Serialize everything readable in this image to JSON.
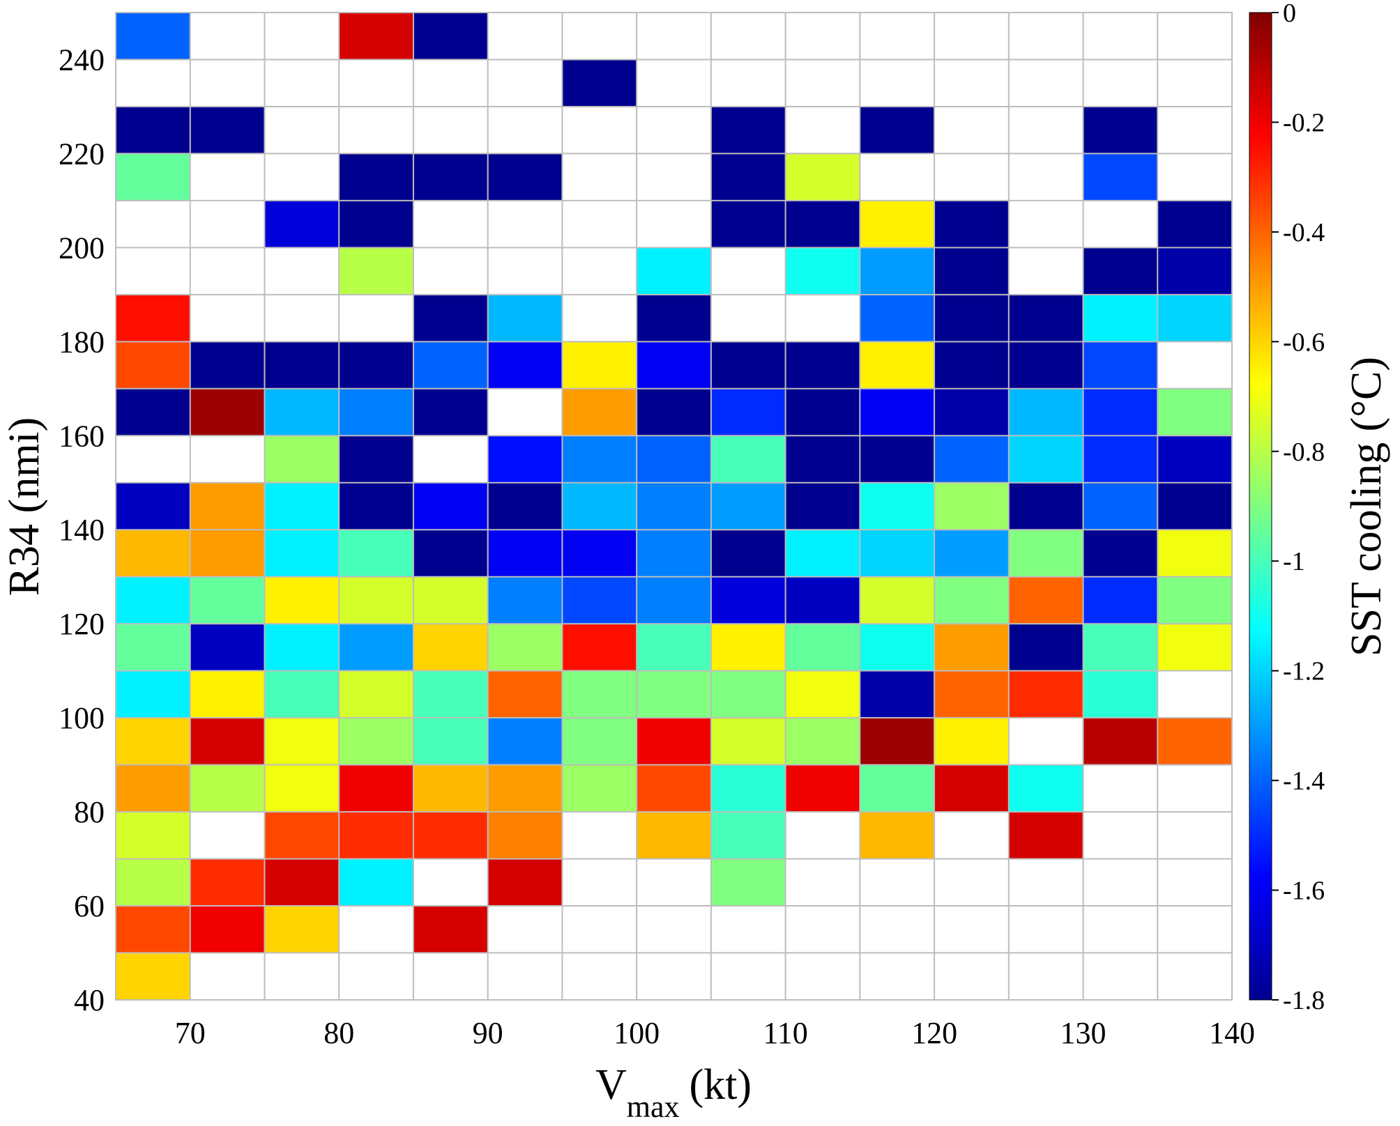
{
  "chart_data": {
    "type": "heatmap",
    "title": "",
    "xlabel": {
      "main": "V",
      "sub": "max",
      "unit": "(kt)"
    },
    "ylabel": "R34 (nmi)",
    "colorbar_label": "SST cooling (°C)",
    "xlim": [
      65,
      140
    ],
    "ylim": [
      40,
      250
    ],
    "clim": [
      -1.8,
      0
    ],
    "colormap": "jet",
    "x_ticks": [
      70,
      80,
      90,
      100,
      110,
      120,
      130,
      140
    ],
    "y_ticks": [
      40,
      60,
      80,
      100,
      120,
      140,
      160,
      180,
      200,
      220,
      240
    ],
    "colorbar_ticks": [
      "0",
      "-0.2",
      "-0.4",
      "-0.6",
      "-0.8",
      "-1",
      "-1.2",
      "-1.4",
      "-1.6",
      "-1.8"
    ],
    "x_bin_width": 5,
    "y_bin_height": 10,
    "x_bins": [
      65,
      70,
      75,
      80,
      85,
      90,
      95,
      100,
      105,
      110,
      115,
      120,
      125,
      130,
      135
    ],
    "y_bins": [
      240,
      230,
      220,
      210,
      200,
      190,
      180,
      170,
      160,
      150,
      140,
      130,
      120,
      110,
      100,
      90,
      80,
      70,
      60,
      50,
      40
    ],
    "grid": true,
    "values": [
      [
        -1.4,
        null,
        null,
        -0.15,
        -1.8,
        null,
        null,
        null,
        null,
        null,
        null,
        null,
        null,
        null,
        null
      ],
      [
        null,
        null,
        null,
        null,
        null,
        null,
        -1.8,
        null,
        null,
        null,
        null,
        null,
        null,
        null,
        null
      ],
      [
        -1.8,
        -1.8,
        null,
        null,
        null,
        null,
        null,
        null,
        -1.8,
        null,
        -1.8,
        null,
        null,
        -1.8,
        null
      ],
      [
        -0.95,
        null,
        null,
        -1.8,
        -1.8,
        -1.8,
        null,
        null,
        -1.8,
        -0.75,
        null,
        null,
        null,
        -1.45,
        null
      ],
      [
        null,
        null,
        -1.65,
        -1.8,
        null,
        null,
        null,
        null,
        -1.8,
        -1.8,
        -0.65,
        -1.8,
        null,
        null,
        -1.8
      ],
      [
        null,
        null,
        null,
        -0.8,
        null,
        null,
        null,
        -1.15,
        null,
        -1.1,
        -1.3,
        -1.8,
        null,
        -1.8,
        -1.75
      ],
      [
        -0.25,
        null,
        null,
        null,
        -1.8,
        -1.25,
        null,
        -1.8,
        null,
        null,
        -1.4,
        -1.8,
        -1.8,
        -1.15,
        -1.2
      ],
      [
        -0.35,
        -1.8,
        -1.8,
        -1.8,
        -1.4,
        -1.6,
        -0.65,
        -1.6,
        -1.8,
        -1.8,
        -0.65,
        -1.8,
        -1.8,
        -1.45,
        null
      ],
      [
        -1.8,
        -0.05,
        -1.25,
        -1.35,
        -1.8,
        null,
        -0.5,
        -1.8,
        -1.5,
        -1.8,
        -1.6,
        -1.75,
        -1.25,
        -1.5,
        -0.9
      ],
      [
        null,
        null,
        -0.85,
        -1.8,
        null,
        -1.55,
        -1.35,
        -1.4,
        -1.0,
        -1.8,
        -1.8,
        -1.4,
        -1.2,
        -1.5,
        -1.7
      ],
      [
        -1.7,
        -0.5,
        -1.15,
        -1.8,
        -1.6,
        -1.8,
        -1.25,
        -1.35,
        -1.3,
        -1.8,
        -1.1,
        -0.85,
        -1.8,
        -1.4,
        -1.8
      ],
      [
        -0.55,
        -0.5,
        -1.15,
        -1.0,
        -1.8,
        -1.6,
        -1.6,
        -1.35,
        -1.8,
        -1.15,
        -1.2,
        -1.3,
        -0.9,
        -1.8,
        -0.7
      ],
      [
        -1.15,
        -0.95,
        -0.65,
        -0.75,
        -0.75,
        -1.35,
        -1.45,
        -1.35,
        -1.65,
        -1.7,
        -0.75,
        -0.9,
        -0.4,
        -1.5,
        -0.9
      ],
      [
        -0.95,
        -1.7,
        -1.15,
        -1.3,
        -0.6,
        -0.85,
        -0.25,
        -1.0,
        -0.65,
        -0.95,
        -1.1,
        -0.5,
        -1.8,
        -1.0,
        -0.7
      ],
      [
        -1.15,
        -0.65,
        -1.0,
        -0.75,
        -1.0,
        -0.4,
        -0.9,
        -0.9,
        -0.9,
        -0.7,
        -1.75,
        -0.4,
        -0.3,
        -1.05,
        null
      ],
      [
        -0.6,
        -0.15,
        -0.7,
        -0.85,
        -1.0,
        -1.35,
        -0.9,
        -0.2,
        -0.75,
        -0.85,
        -0.05,
        -0.65,
        null,
        -0.1,
        -0.4
      ],
      [
        -0.5,
        -0.8,
        -0.7,
        -0.2,
        -0.55,
        -0.5,
        -0.85,
        -0.35,
        -1.05,
        -0.2,
        -0.95,
        -0.15,
        -1.1,
        null,
        null
      ],
      [
        -0.75,
        null,
        -0.35,
        -0.3,
        -0.3,
        -0.45,
        null,
        -0.55,
        -1.0,
        null,
        -0.55,
        null,
        -0.15,
        null,
        null
      ],
      [
        -0.8,
        -0.3,
        -0.15,
        -1.15,
        null,
        -0.15,
        null,
        null,
        -0.9,
        null,
        null,
        null,
        null,
        null,
        null
      ],
      [
        -0.35,
        -0.2,
        -0.6,
        null,
        -0.15,
        null,
        null,
        null,
        null,
        null,
        null,
        null,
        null,
        null,
        null
      ],
      [
        -0.6,
        null,
        null,
        null,
        null,
        null,
        null,
        null,
        null,
        null,
        null,
        null,
        null,
        null,
        null
      ]
    ]
  }
}
